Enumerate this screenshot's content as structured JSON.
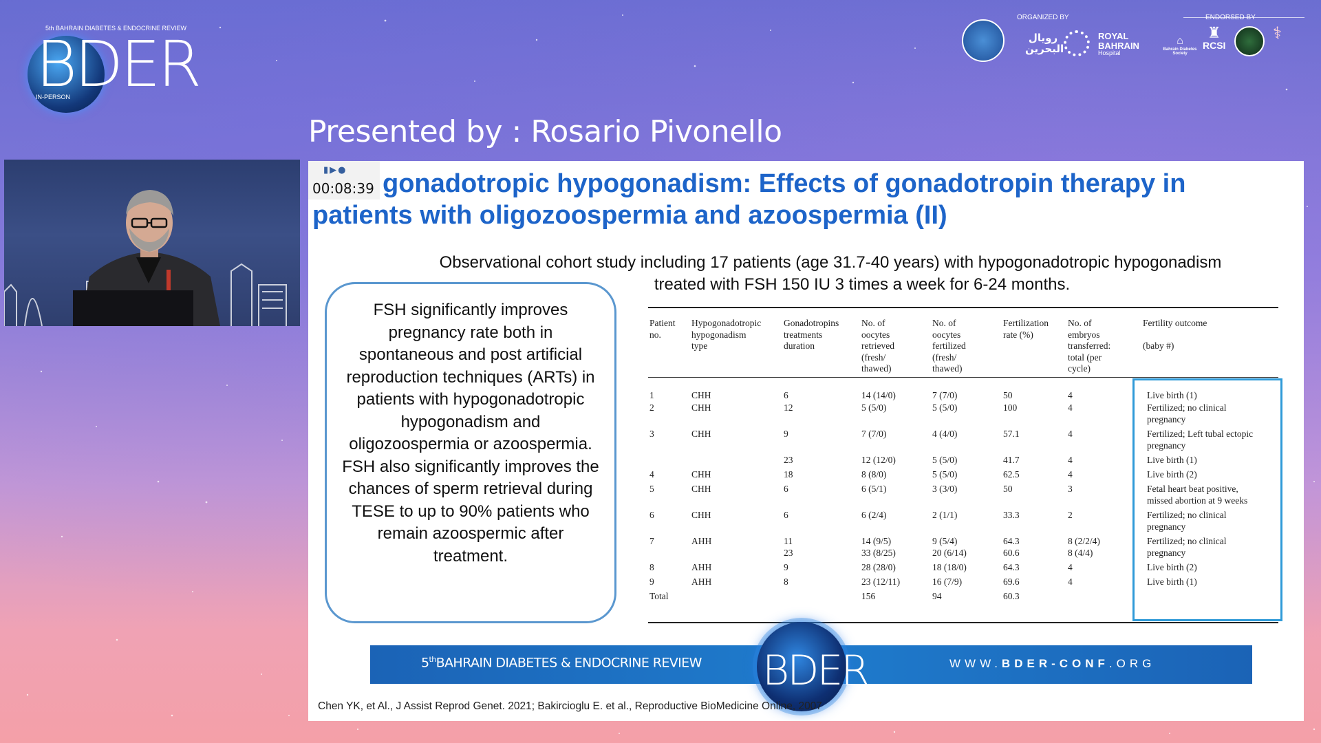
{
  "conference_logo": {
    "wordmark": "BDER",
    "tagline": "5th BAHRAIN DIABETES & ENDOCRINE REVIEW",
    "format": "IN-PERSON"
  },
  "sponsors": {
    "organized_by_label": "ORGANIZED BY",
    "endorsed_by_label": "ENDORSED BY",
    "organizer_1_arabic": "رويال البحرين",
    "organizer_2_name": [
      "ROYAL",
      "BAHRAIN",
      "Hospital"
    ],
    "endorser_rcsi": "RCSI",
    "endorser_bds": "Bahrain Diabetes Society"
  },
  "presenter": {
    "label": "Presented by : Rosario Pivonello"
  },
  "slide": {
    "timer": "00:08:39",
    "title_line1": "gonadotropic hypogonadism: Effects of gonadotropin therapy in",
    "title_line2": "patients with oligozoospermia and azoospermia (II)",
    "study_line1": "Observational cohort study including 17 patients (age 31.7-40 years) with hypogonadotropic hypogonadism",
    "study_line2": "treated with FSH 150 IU 3 times a week for 6-24 months.",
    "callout_text": "FSH significantly improves pregnancy rate both in spontaneous and post artificial reproduction techniques (ARTs) in patients with hypogonadotropic hypogonadism and oligozoospermia or azoospermia. FSH also significantly improves the chances of sperm retrieval during TESE to up to 90% patients who remain azoospermic after treatment.",
    "banner_left_prefix": "5",
    "banner_left_sup": "th",
    "banner_left_text": "BAHRAIN DIABETES & ENDOCRINE REVIEW",
    "banner_logo": "BDER",
    "banner_url_prefix": "WWW.",
    "banner_url_bold": "BDER-CONF",
    "banner_url_suffix": ".ORG",
    "reference": "Chen YK, et Al., J Assist Reprod Genet. 2021; Bakircioglu E. et al., Reproductive BioMedicine Online, 2007"
  },
  "table": {
    "headers": [
      [
        "Patient",
        "no."
      ],
      [
        "Hypogonadotropic",
        "hypogonadism",
        "type"
      ],
      [
        "Gonadotropins",
        "treatments",
        "duration"
      ],
      [
        "No. of",
        "oocytes",
        "retrieved",
        "(fresh/",
        "thawed)"
      ],
      [
        "No. of",
        "oocytes",
        "fertilized",
        "(fresh/",
        "thawed)"
      ],
      [
        "Fertilization",
        "rate (%)"
      ],
      [
        "No. of",
        "embryos",
        "transferred:",
        "total (per",
        "cycle)"
      ],
      [
        "Fertility outcome",
        "",
        "(baby #)"
      ]
    ],
    "rows": [
      [
        "1",
        "CHH",
        "6",
        "14 (14/0)",
        "7 (7/0)",
        "50",
        "4",
        "Live birth (1)"
      ],
      [
        "2",
        "CHH",
        "12",
        "5 (5/0)",
        "5 (5/0)",
        "100",
        "4",
        "Fertilized; no clinical\npregnancy"
      ],
      [
        "3",
        "CHH",
        "9",
        "7 (7/0)",
        "4 (4/0)",
        "57.1",
        "4",
        "Fertilized; Left tubal ectopic\npregnancy"
      ],
      [
        "",
        "",
        "23",
        "12 (12/0)",
        "5 (5/0)",
        "41.7",
        "4",
        "Live birth (1)"
      ],
      [
        "4",
        "CHH",
        "18",
        "8 (8/0)",
        "5 (5/0)",
        "62.5",
        "4",
        "Live birth (2)"
      ],
      [
        "5",
        "CHH",
        "6",
        "6 (5/1)",
        "3 (3/0)",
        "50",
        "3",
        "Fetal heart beat positive,\nmissed abortion at 9 weeks"
      ],
      [
        "6",
        "CHH",
        "6",
        "6 (2/4)",
        "2 (1/1)",
        "33.3",
        "2",
        "Fertilized; no clinical\npregnancy"
      ],
      [
        "7",
        "AHH",
        "11\n23",
        "14 (9/5)\n33 (8/25)",
        "9 (5/4)\n20 (6/14)",
        "64.3\n60.6",
        "8 (2/2/4)\n8 (4/4)",
        "Fertilized; no clinical\npregnancy"
      ],
      [
        "8",
        "AHH",
        "9",
        "28 (28/0)",
        "18 (18/0)",
        "64.3",
        "4",
        "Live birth (2)"
      ],
      [
        "9",
        "AHH",
        "8",
        "23 (12/11)",
        "16 (7/9)",
        "69.6",
        "4",
        "Live birth (1)"
      ],
      [
        "Total",
        "",
        "",
        "156",
        "94",
        "60.3",
        "",
        ""
      ]
    ]
  }
}
